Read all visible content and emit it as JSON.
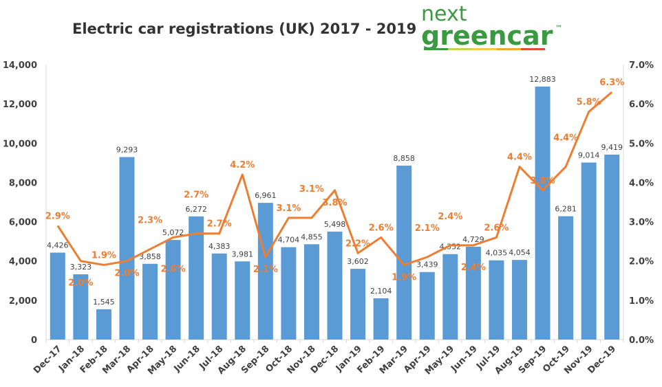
{
  "chart_data": {
    "type": "bar+line",
    "title": "Electric car registrations (UK) 2017 - 2019",
    "categories": [
      "Dec-17",
      "Jan-18",
      "Feb-18",
      "Mar-18",
      "Apr-18",
      "May-18",
      "Jun-18",
      "Jul-18",
      "Aug-18",
      "Sep-18",
      "Oct-18",
      "Nov-18",
      "Dec-18",
      "Jan-19",
      "Feb-19",
      "Mar-19",
      "Apr-19",
      "May-19",
      "Jun-19",
      "Jul-19",
      "Aug-19",
      "Sep-19",
      "Oct-19",
      "Nov-19",
      "Dec-19"
    ],
    "series": [
      {
        "type": "bar",
        "axis": "left",
        "color": "#5b9bd5",
        "values": [
          4426,
          3323,
          1545,
          9293,
          3858,
          5072,
          6272,
          4383,
          3981,
          6961,
          4704,
          4855,
          5498,
          3602,
          2104,
          8858,
          3439,
          4352,
          4729,
          4035,
          4054,
          12883,
          6281,
          9014,
          9419
        ],
        "labels": [
          "4,426",
          "3,323",
          "1,545",
          "9,293",
          "3,858",
          "5,072",
          "6,272",
          "4,383",
          "3,981",
          "6,961",
          "4,704",
          "4,855",
          "5,498",
          "3,602",
          "2,104",
          "8,858",
          "3,439",
          "4,352",
          "4,729",
          "4,035",
          "4,054",
          "12,883",
          "6,281",
          "9,014",
          "9,419"
        ]
      },
      {
        "type": "line",
        "axis": "right",
        "color": "#ed7d31",
        "values": [
          2.9,
          2.0,
          1.9,
          2.0,
          2.3,
          2.6,
          2.7,
          2.7,
          4.2,
          2.1,
          3.1,
          3.1,
          3.8,
          2.2,
          2.6,
          1.9,
          2.1,
          2.4,
          2.4,
          2.6,
          4.4,
          3.8,
          4.4,
          5.8,
          6.3
        ],
        "labels": [
          "2.9%",
          "2.0%",
          "1.9%",
          "2.0%",
          "2.3%",
          "2.6%",
          "2.7%",
          "2.7%",
          "4.2%",
          "2.1%",
          "3.1%",
          "3.1%",
          "3.8%",
          "2.2%",
          "2.6%",
          "1.9%",
          "2.1%",
          "2.4%",
          "2.4%",
          "2.6%",
          "4.4%",
          "3.8%",
          "4.4%",
          "5.8%",
          "6.3%"
        ]
      }
    ],
    "ylim": [
      0,
      14000
    ],
    "y2lim": [
      0,
      7
    ],
    "yticks": [
      "0",
      "2,000",
      "4,000",
      "6,000",
      "8,000",
      "10,000",
      "12,000",
      "14,000"
    ],
    "y2ticks": [
      "0.0%",
      "1.0%",
      "2.0%",
      "3.0%",
      "4.0%",
      "5.0%",
      "6.0%",
      "7.0%"
    ],
    "grid": false,
    "legend": "none"
  },
  "logo": {
    "line1": "next",
    "line2": "greencar",
    "tm": "™",
    "stripe_colors": [
      "#3a9a3f",
      "#c8d34a",
      "#f2c94c",
      "#f0a830",
      "#e04b3a"
    ]
  }
}
